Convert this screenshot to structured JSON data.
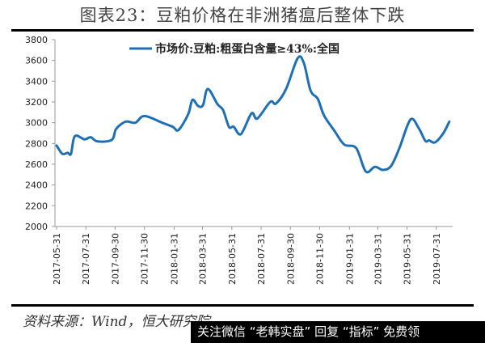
{
  "title": "图表23：豆粕价格在非洲猪瘟后整体下跌",
  "source": "资料来源：Wind，恒大研究院",
  "watermark": "关注微信 “老韩实盘” 回复 “指标” 免费领",
  "colors": {
    "series": "#1f6fb5",
    "axis": "#999999",
    "text": "#222222"
  },
  "chart_data": {
    "type": "line",
    "title": "",
    "xlabel": "",
    "ylabel": "",
    "ylim": [
      2000,
      3800
    ],
    "yticks": [
      "3800",
      "3600",
      "3400",
      "3200",
      "3000",
      "2800",
      "2600",
      "2400",
      "2200",
      "2000"
    ],
    "xticks": [
      "2017-05-31",
      "2017-07-31",
      "2017-09-30",
      "2017-11-30",
      "2018-01-31",
      "2018-03-31",
      "2018-05-31",
      "2018-07-31",
      "2018-09-30",
      "2018-11-30",
      "2019-01-31",
      "2019-03-31",
      "2019-05-31",
      "2019-07-31"
    ],
    "grid": false,
    "legend": "top-center",
    "series": [
      {
        "name": "市场价:豆粕:粗蛋白含量≥43%:全国",
        "x": [
          "2017-05-31",
          "2017-06-12",
          "2017-06-23",
          "2017-06-30",
          "2017-07-08",
          "2017-07-28",
          "2017-08-10",
          "2017-08-24",
          "2017-09-23",
          "2017-10-02",
          "2017-10-22",
          "2017-11-11",
          "2017-11-30",
          "2018-01-06",
          "2018-01-28",
          "2018-02-09",
          "2018-03-01",
          "2018-03-10",
          "2018-03-22",
          "2018-04-01",
          "2018-04-11",
          "2018-05-01",
          "2018-05-13",
          "2018-05-25",
          "2018-06-04",
          "2018-06-19",
          "2018-07-11",
          "2018-07-23",
          "2018-08-19",
          "2018-08-31",
          "2018-09-21",
          "2018-10-15",
          "2018-10-28",
          "2018-11-11",
          "2018-11-26",
          "2018-12-09",
          "2018-12-31",
          "2019-01-20",
          "2019-02-14",
          "2019-03-06",
          "2019-03-25",
          "2019-04-11",
          "2019-04-28",
          "2019-05-15",
          "2019-06-07",
          "2019-06-24",
          "2019-07-08",
          "2019-07-16",
          "2019-07-28",
          "2019-08-14",
          "2019-08-27"
        ],
        "y": [
          2780,
          2700,
          2710,
          2700,
          2870,
          2840,
          2860,
          2820,
          2835,
          2940,
          3010,
          3000,
          3065,
          3000,
          2960,
          2930,
          3080,
          3220,
          3160,
          3170,
          3325,
          3180,
          3120,
          2960,
          2960,
          2890,
          3090,
          3040,
          3200,
          3185,
          3325,
          3620,
          3575,
          3310,
          3230,
          3070,
          2920,
          2790,
          2755,
          2530,
          2575,
          2545,
          2585,
          2755,
          3030,
          2950,
          2825,
          2830,
          2810,
          2895,
          3010
        ]
      }
    ]
  }
}
